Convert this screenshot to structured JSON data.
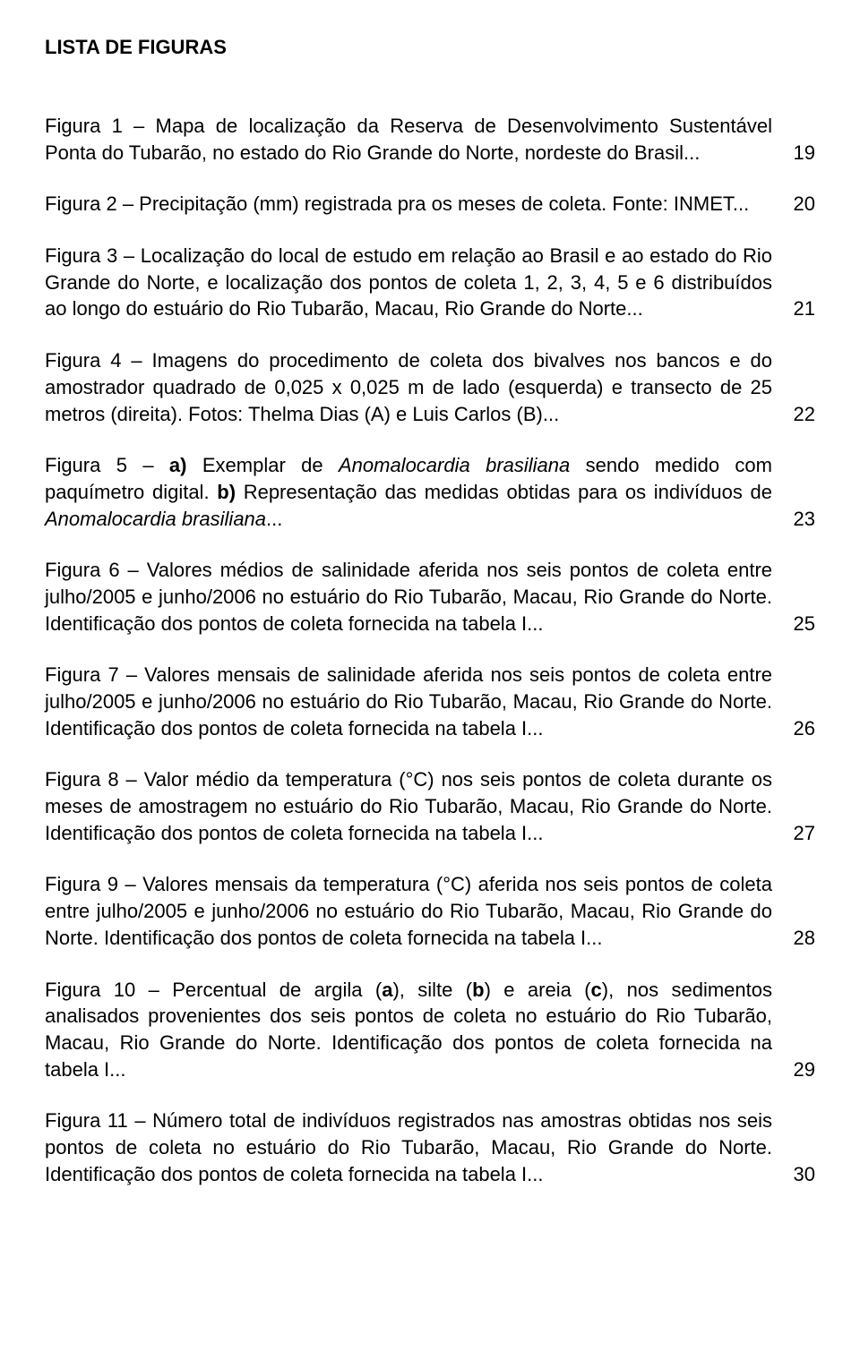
{
  "title": "LISTA DE FIGURAS",
  "entries": [
    {
      "parts": [
        {
          "text": "Figura 1 – Mapa de localização da Reserva de Desenvolvimento Sustentável Ponta do Tubarão, no estado do Rio Grande do Norte, nordeste do Brasil...",
          "style": ""
        }
      ],
      "page": "19"
    },
    {
      "parts": [
        {
          "text": "Figura 2 – Precipitação (mm) registrada pra os meses de coleta. Fonte: INMET...",
          "style": ""
        }
      ],
      "page": "20"
    },
    {
      "parts": [
        {
          "text": "Figura 3 – Localização do local de estudo em relação ao Brasil e ao estado do Rio Grande do Norte, e localização dos pontos de coleta 1, 2, 3, 4, 5 e 6 distribuídos ao longo do estuário do Rio Tubarão, Macau, Rio Grande do Norte...",
          "style": ""
        }
      ],
      "page": "21"
    },
    {
      "parts": [
        {
          "text": "Figura 4 – Imagens do procedimento de coleta dos bivalves nos bancos e do amostrador quadrado de 0,025 x 0,025 m de lado (esquerda) e transecto de 25 metros (direita). Fotos: Thelma Dias (A) e Luis Carlos (B)...",
          "style": ""
        }
      ],
      "page": "22"
    },
    {
      "parts": [
        {
          "text": "Figura 5 – ",
          "style": ""
        },
        {
          "text": "a)",
          "style": "bold"
        },
        {
          "text": " Exemplar de ",
          "style": ""
        },
        {
          "text": "Anomalocardia brasiliana",
          "style": "italic"
        },
        {
          "text": " sendo medido com paquímetro digital. ",
          "style": ""
        },
        {
          "text": "b)",
          "style": "bold"
        },
        {
          "text": " Representação das medidas obtidas para os indivíduos de ",
          "style": ""
        },
        {
          "text": "Anomalocardia brasiliana",
          "style": "italic"
        },
        {
          "text": "...",
          "style": ""
        }
      ],
      "page": "23"
    },
    {
      "parts": [
        {
          "text": "Figura 6 – Valores médios de salinidade aferida nos seis pontos de coleta entre julho/2005 e junho/2006 no estuário do Rio Tubarão, Macau, Rio Grande do Norte. Identificação dos pontos de coleta fornecida na tabela I...",
          "style": ""
        }
      ],
      "page": "25"
    },
    {
      "parts": [
        {
          "text": "Figura 7 – Valores mensais de salinidade aferida nos seis pontos de coleta entre julho/2005 e junho/2006 no estuário do Rio Tubarão, Macau, Rio Grande do Norte. Identificação dos pontos de coleta fornecida na tabela I...",
          "style": ""
        }
      ],
      "page": "26"
    },
    {
      "parts": [
        {
          "text": "Figura 8 – Valor médio da temperatura (°C) nos seis pontos de coleta durante os meses de amostragem no estuário do Rio Tubarão, Macau, Rio Grande do Norte. Identificação dos pontos de coleta fornecida na tabela I...",
          "style": ""
        }
      ],
      "page": "27"
    },
    {
      "parts": [
        {
          "text": "Figura 9 – Valores mensais da temperatura (°C) aferida nos seis pontos de coleta entre julho/2005 e junho/2006 no estuário do Rio Tubarão, Macau, Rio Grande do Norte. Identificação dos pontos de coleta fornecida na tabela I...",
          "style": ""
        }
      ],
      "page": "28"
    },
    {
      "parts": [
        {
          "text": "Figura 10 – Percentual de argila (",
          "style": ""
        },
        {
          "text": "a",
          "style": "bold"
        },
        {
          "text": "), silte (",
          "style": ""
        },
        {
          "text": "b",
          "style": "bold"
        },
        {
          "text": ") e areia (",
          "style": ""
        },
        {
          "text": "c",
          "style": "bold"
        },
        {
          "text": "), nos sedimentos analisados provenientes dos seis pontos de coleta no estuário do Rio Tubarão, Macau, Rio Grande do Norte. Identificação dos pontos de coleta fornecida na tabela I...",
          "style": ""
        }
      ],
      "page": "29"
    },
    {
      "parts": [
        {
          "text": "Figura 11 – Número total de indivíduos registrados nas amostras obtidas nos seis pontos de coleta no estuário do Rio Tubarão, Macau, Rio Grande do Norte. Identificação dos pontos de coleta fornecida na tabela I...",
          "style": ""
        }
      ],
      "page": "30"
    }
  ]
}
